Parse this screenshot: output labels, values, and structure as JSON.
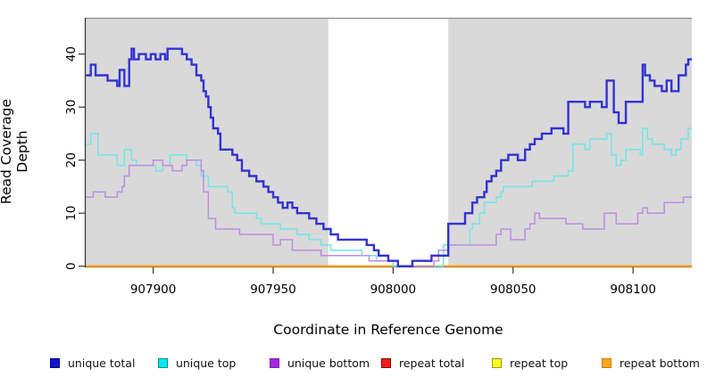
{
  "chart_data": {
    "type": "line",
    "subtype": "step",
    "title": "",
    "xlabel": "Coordinate in Reference Genome",
    "ylabel": "Read Coverage Depth",
    "xlim": [
      907871.5,
      908124.5
    ],
    "ylim": [
      0,
      47
    ],
    "x_ticks": [
      907900,
      907950,
      908000,
      908050,
      908100
    ],
    "y_ticks": [
      0,
      10,
      20,
      30,
      40
    ],
    "grid": false,
    "legend_position": "bottom",
    "background_shading": {
      "shade_color": "#d9d9d9",
      "shaded_x_regions": [
        [
          907871.5,
          907973
        ],
        [
          908023,
          908124.5
        ]
      ],
      "unshaded_gap": [
        907973,
        908023
      ]
    },
    "series": [
      {
        "name": "unique total",
        "color": "#3232d2",
        "width": 2.4,
        "points": [
          [
            907872,
            36
          ],
          [
            907874,
            38
          ],
          [
            907876,
            36
          ],
          [
            907881,
            35
          ],
          [
            907885,
            34
          ],
          [
            907886,
            37
          ],
          [
            907888,
            34
          ],
          [
            907890,
            39
          ],
          [
            907891,
            41
          ],
          [
            907892,
            39
          ],
          [
            907894,
            40
          ],
          [
            907897,
            39
          ],
          [
            907899,
            40
          ],
          [
            907901,
            39
          ],
          [
            907903,
            40
          ],
          [
            907905,
            39
          ],
          [
            907906,
            41
          ],
          [
            907912,
            40
          ],
          [
            907914,
            39
          ],
          [
            907916,
            38
          ],
          [
            907918,
            36
          ],
          [
            907920,
            35
          ],
          [
            907921,
            33
          ],
          [
            907922,
            32
          ],
          [
            907923,
            30
          ],
          [
            907924,
            28
          ],
          [
            907925,
            26
          ],
          [
            907927,
            25
          ],
          [
            907928,
            22
          ],
          [
            907933,
            21
          ],
          [
            907935,
            20
          ],
          [
            907937,
            18
          ],
          [
            907940,
            17
          ],
          [
            907943,
            16
          ],
          [
            907946,
            15
          ],
          [
            907948,
            14
          ],
          [
            907950,
            13
          ],
          [
            907952,
            12
          ],
          [
            907954,
            11
          ],
          [
            907956,
            12
          ],
          [
            907958,
            11
          ],
          [
            907960,
            10
          ],
          [
            907965,
            9
          ],
          [
            907968,
            8
          ],
          [
            907971,
            7
          ],
          [
            907974,
            6
          ],
          [
            907977,
            5
          ],
          [
            907989,
            4
          ],
          [
            907992,
            3
          ],
          [
            907994,
            2
          ],
          [
            907998,
            1
          ],
          [
            908002,
            0
          ],
          [
            908008,
            1
          ],
          [
            908016,
            2
          ],
          [
            908023,
            8
          ],
          [
            908030,
            10
          ],
          [
            908033,
            12
          ],
          [
            908035,
            13
          ],
          [
            908038,
            14
          ],
          [
            908039,
            16
          ],
          [
            908041,
            17
          ],
          [
            908043,
            18
          ],
          [
            908045,
            20
          ],
          [
            908048,
            21
          ],
          [
            908052,
            20
          ],
          [
            908055,
            22
          ],
          [
            908057,
            23
          ],
          [
            908059,
            24
          ],
          [
            908062,
            25
          ],
          [
            908066,
            26
          ],
          [
            908071,
            25
          ],
          [
            908073,
            31
          ],
          [
            908080,
            30
          ],
          [
            908082,
            31
          ],
          [
            908087,
            30
          ],
          [
            908089,
            35
          ],
          [
            908092,
            29
          ],
          [
            908094,
            27
          ],
          [
            908097,
            31
          ],
          [
            908104,
            38
          ],
          [
            908105,
            36
          ],
          [
            908107,
            35
          ],
          [
            908109,
            34
          ],
          [
            908112,
            33
          ],
          [
            908114,
            35
          ],
          [
            908116,
            33
          ],
          [
            908119,
            36
          ],
          [
            908122,
            38
          ],
          [
            908123,
            39
          ]
        ]
      },
      {
        "name": "unique top",
        "color": "#6fe6e9",
        "width": 1.5,
        "points": [
          [
            907872,
            23
          ],
          [
            907874,
            25
          ],
          [
            907877,
            21
          ],
          [
            907885,
            19
          ],
          [
            907888,
            22
          ],
          [
            907891,
            20
          ],
          [
            907893,
            19
          ],
          [
            907901,
            18
          ],
          [
            907904,
            19
          ],
          [
            907907,
            21
          ],
          [
            907914,
            20
          ],
          [
            907918,
            19
          ],
          [
            907920,
            17
          ],
          [
            907923,
            15
          ],
          [
            907931,
            14
          ],
          [
            907933,
            11
          ],
          [
            907934,
            10
          ],
          [
            907943,
            9
          ],
          [
            907945,
            8
          ],
          [
            907953,
            7
          ],
          [
            907960,
            6
          ],
          [
            907965,
            5
          ],
          [
            907970,
            4
          ],
          [
            907974,
            3
          ],
          [
            907987,
            2
          ],
          [
            907993,
            1
          ],
          [
            908000,
            0
          ],
          [
            908021,
            4
          ],
          [
            908032,
            7
          ],
          [
            908033,
            8
          ],
          [
            908036,
            10
          ],
          [
            908038,
            12
          ],
          [
            908043,
            13
          ],
          [
            908045,
            14
          ],
          [
            908046,
            15
          ],
          [
            908058,
            16
          ],
          [
            908067,
            17
          ],
          [
            908073,
            18
          ],
          [
            908075,
            23
          ],
          [
            908080,
            22
          ],
          [
            908082,
            24
          ],
          [
            908089,
            25
          ],
          [
            908091,
            21
          ],
          [
            908093,
            19
          ],
          [
            908095,
            20
          ],
          [
            908097,
            22
          ],
          [
            908103,
            21
          ],
          [
            908104,
            26
          ],
          [
            908106,
            24
          ],
          [
            908108,
            23
          ],
          [
            908113,
            22
          ],
          [
            908116,
            21
          ],
          [
            908118,
            22
          ],
          [
            908120,
            24
          ],
          [
            908123,
            26
          ]
        ]
      },
      {
        "name": "unique bottom",
        "color": "#bd8ce0",
        "width": 1.5,
        "points": [
          [
            907872,
            13
          ],
          [
            907875,
            14
          ],
          [
            907880,
            13
          ],
          [
            907885,
            14
          ],
          [
            907887,
            15
          ],
          [
            907888,
            17
          ],
          [
            907890,
            19
          ],
          [
            907900,
            20
          ],
          [
            907904,
            19
          ],
          [
            907908,
            18
          ],
          [
            907912,
            19
          ],
          [
            907914,
            20
          ],
          [
            907920,
            18
          ],
          [
            907921,
            14
          ],
          [
            907923,
            9
          ],
          [
            907926,
            7
          ],
          [
            907936,
            6
          ],
          [
            907950,
            4
          ],
          [
            907953,
            5
          ],
          [
            907958,
            3
          ],
          [
            907970,
            2
          ],
          [
            907990,
            1
          ],
          [
            908002,
            0
          ],
          [
            908017,
            1
          ],
          [
            908019,
            3
          ],
          [
            908023,
            4
          ],
          [
            908043,
            6
          ],
          [
            908045,
            7
          ],
          [
            908049,
            5
          ],
          [
            908055,
            7
          ],
          [
            908057,
            8
          ],
          [
            908059,
            10
          ],
          [
            908061,
            9
          ],
          [
            908072,
            8
          ],
          [
            908079,
            7
          ],
          [
            908088,
            10
          ],
          [
            908093,
            8
          ],
          [
            908102,
            10
          ],
          [
            908104,
            11
          ],
          [
            908106,
            10
          ],
          [
            908113,
            12
          ],
          [
            908121,
            13
          ]
        ]
      },
      {
        "name": "repeat total",
        "color": "#cd0000",
        "width": 1.5,
        "points": [
          [
            907872,
            0
          ]
        ]
      },
      {
        "name": "repeat top",
        "color": "#ffe800",
        "width": 1.5,
        "points": [
          [
            907872,
            0
          ]
        ]
      },
      {
        "name": "repeat bottom",
        "color": "#ff9d0a",
        "width": 2.1,
        "points": [
          [
            907872,
            0
          ]
        ]
      }
    ],
    "legend": [
      {
        "label": "unique total",
        "color": "#1414cd",
        "border": "#00008b"
      },
      {
        "label": "unique top",
        "color": "#00eaee",
        "border": "#008b8b"
      },
      {
        "label": "unique bottom",
        "color": "#a428e0",
        "border": "#7a1fb5"
      },
      {
        "label": "repeat total",
        "color": "#f21b1b",
        "border": "#8b0000"
      },
      {
        "label": "repeat top",
        "color": "#fdf62b",
        "border": "#9a9a00"
      },
      {
        "label": "repeat bottom",
        "color": "#ffa51e",
        "border": "#c87d00"
      }
    ]
  }
}
